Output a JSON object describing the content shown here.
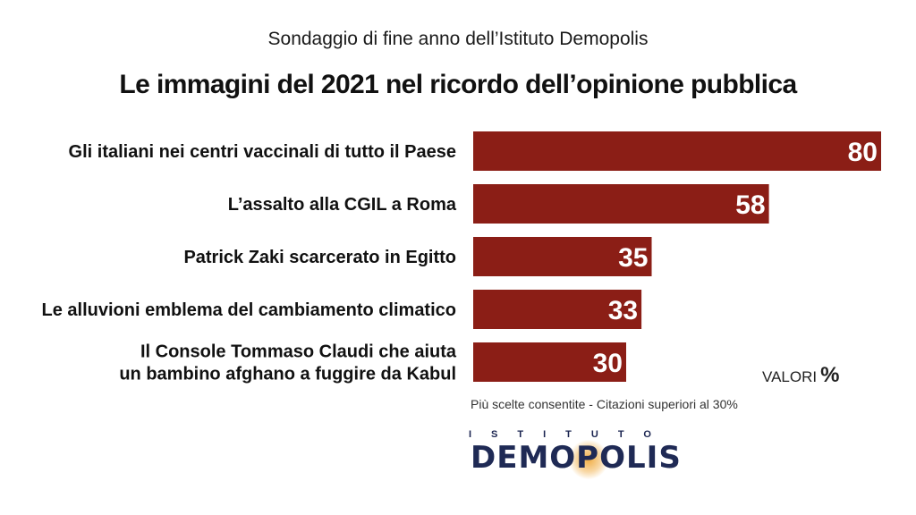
{
  "subtitle": "Sondaggio di fine anno dell’Istituto Demopolis",
  "title": "Le immagini del 2021 nel ricordo dell’opinione pubblica",
  "units_label": "VALORI",
  "units_symbol": "%",
  "footnote": "Più scelte consentite - Citazioni superiori al 30%",
  "logo": {
    "top_text": "ISTITUTO",
    "main_text": "DEMOPOLIS"
  },
  "colors": {
    "bar": "#8b1e16",
    "value_text": "#ffffff"
  },
  "chart_data": {
    "type": "bar",
    "orientation": "horizontal",
    "categories": [
      [
        "Gli italiani nei centri vaccinali di tutto il Paese"
      ],
      [
        "L’assalto alla CGIL a Roma"
      ],
      [
        "Patrick Zaki scarcerato in Egitto"
      ],
      [
        "Le alluvioni emblema del cambiamento climatico"
      ],
      [
        "Il Console Tommaso Claudi che aiuta",
        "un bambino afghano a fuggire da Kabul"
      ]
    ],
    "values": [
      80,
      58,
      35,
      33,
      30
    ],
    "xlim": [
      0,
      80
    ],
    "grid": false,
    "legend": "none"
  }
}
